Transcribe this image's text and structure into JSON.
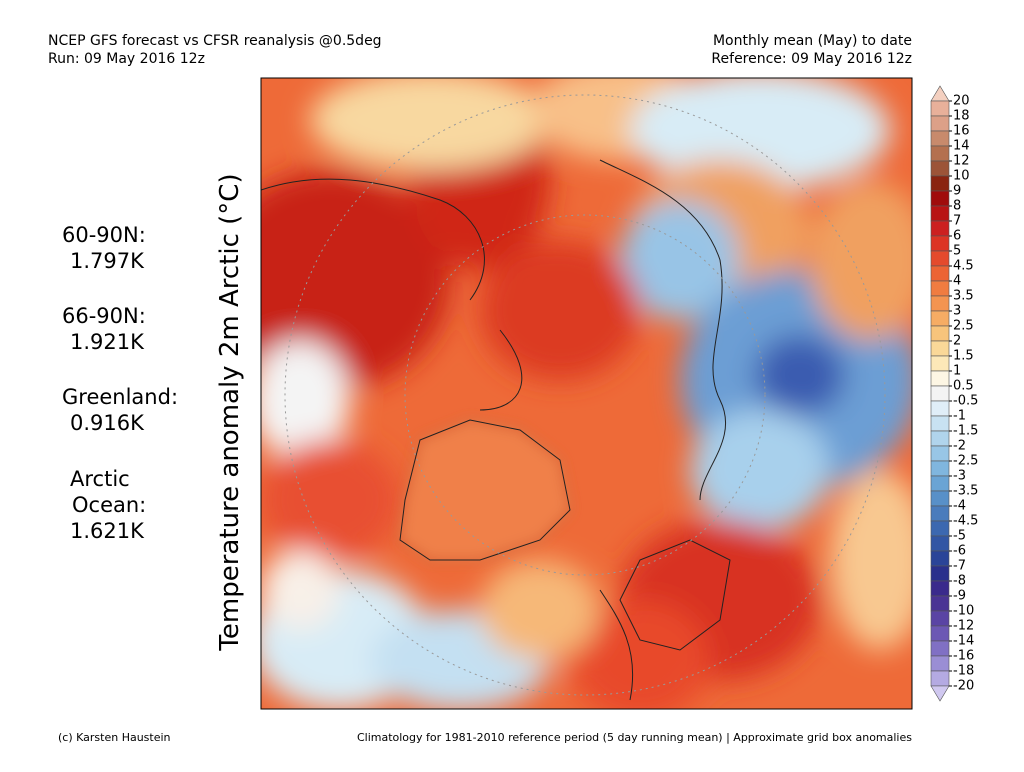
{
  "header": {
    "title_line1": "NCEP GFS forecast vs CFSR reanalysis @0.5deg",
    "title_line2": "Run: 09 May 2016 12z",
    "right_line1": "Monthly mean (May) to date",
    "right_line2": "Reference: 09 May 2016 12z"
  },
  "vertical_title": "Temperature anomaly 2m Arctic (°C)",
  "stats": [
    {
      "label": "60-90N:",
      "value": "1.797K"
    },
    {
      "label": "66-90N:",
      "value": "1.921K"
    },
    {
      "label": "Greenland:",
      "value": "0.916K"
    },
    {
      "label": "Arctic Ocean:",
      "value": "1.621K"
    }
  ],
  "colorbar": {
    "levels": [
      20,
      18,
      16,
      14,
      12,
      10,
      9,
      8,
      7,
      6,
      5,
      4.5,
      4,
      3.5,
      3,
      2.5,
      2,
      1.5,
      1,
      0.5,
      -0.5,
      -1,
      -1.5,
      -2,
      -2.5,
      -3,
      -3.5,
      -4,
      -4.5,
      -5,
      -6,
      -7,
      -8,
      -9,
      -10,
      -12,
      -14,
      -16,
      -18,
      -20
    ],
    "colors": [
      "#f4d0c0",
      "#e8b09a",
      "#dca088",
      "#c88a6c",
      "#b4704f",
      "#9c5438",
      "#8a2410",
      "#a00c0c",
      "#b81414",
      "#cc2020",
      "#dc3424",
      "#e44a2c",
      "#ec6434",
      "#f07c40",
      "#f49450",
      "#f6ac64",
      "#f8c47c",
      "#fad898",
      "#fce8b8",
      "#fdf6e4",
      "#f4f4f4",
      "#e0eef8",
      "#c8e2f2",
      "#b0d4ec",
      "#98c6e6",
      "#80b6de",
      "#6aa4d4",
      "#5890c8",
      "#4a7cbc",
      "#3c68b0",
      "#3256a4",
      "#2a4498",
      "#2a308c",
      "#3a2a8c",
      "#4a3494",
      "#5a44a4",
      "#6c58b4",
      "#8070c4",
      "#9a8ed4",
      "#b4aae2",
      "#d0c8f0"
    ]
  },
  "footer": {
    "left": "(c) Karsten Haustein",
    "right": "Climatology for 1981-2010 reference period (5 day running mean) | Approximate grid box anomalies"
  }
}
